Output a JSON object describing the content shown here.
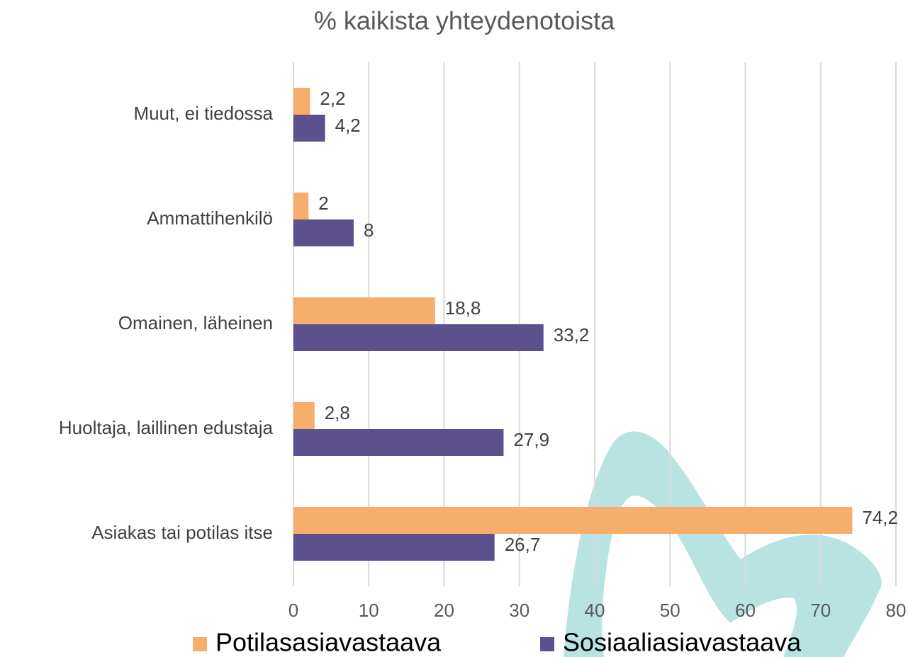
{
  "chart_data": {
    "type": "hbar",
    "title": "% kaikista yhteydenotoista",
    "categories": [
      "Asiakas tai potilas itse",
      "Huoltaja, laillinen edustaja",
      "Omainen, läheinen",
      "Ammattihenkilö",
      "Muut, ei tiedossa"
    ],
    "series": [
      {
        "name": "Potilasasiavastaava",
        "color": "#f7ad6b",
        "values": [
          74.2,
          2.8,
          18.8,
          2,
          2.2
        ],
        "value_labels": [
          "74,2",
          "2,8",
          "18,8",
          "2",
          "2,2"
        ]
      },
      {
        "name": "Sosiaaliasiavastaava",
        "color": "#5c518c",
        "values": [
          26.7,
          27.9,
          33.2,
          8,
          4.2
        ],
        "value_labels": [
          "26,7",
          "27,9",
          "33,2",
          "8",
          "4,2"
        ]
      }
    ],
    "xlim": [
      0,
      80
    ],
    "xticks": [
      0,
      10,
      20,
      30,
      40,
      50,
      60,
      70,
      80
    ],
    "grid": true,
    "legend": "bottom"
  }
}
